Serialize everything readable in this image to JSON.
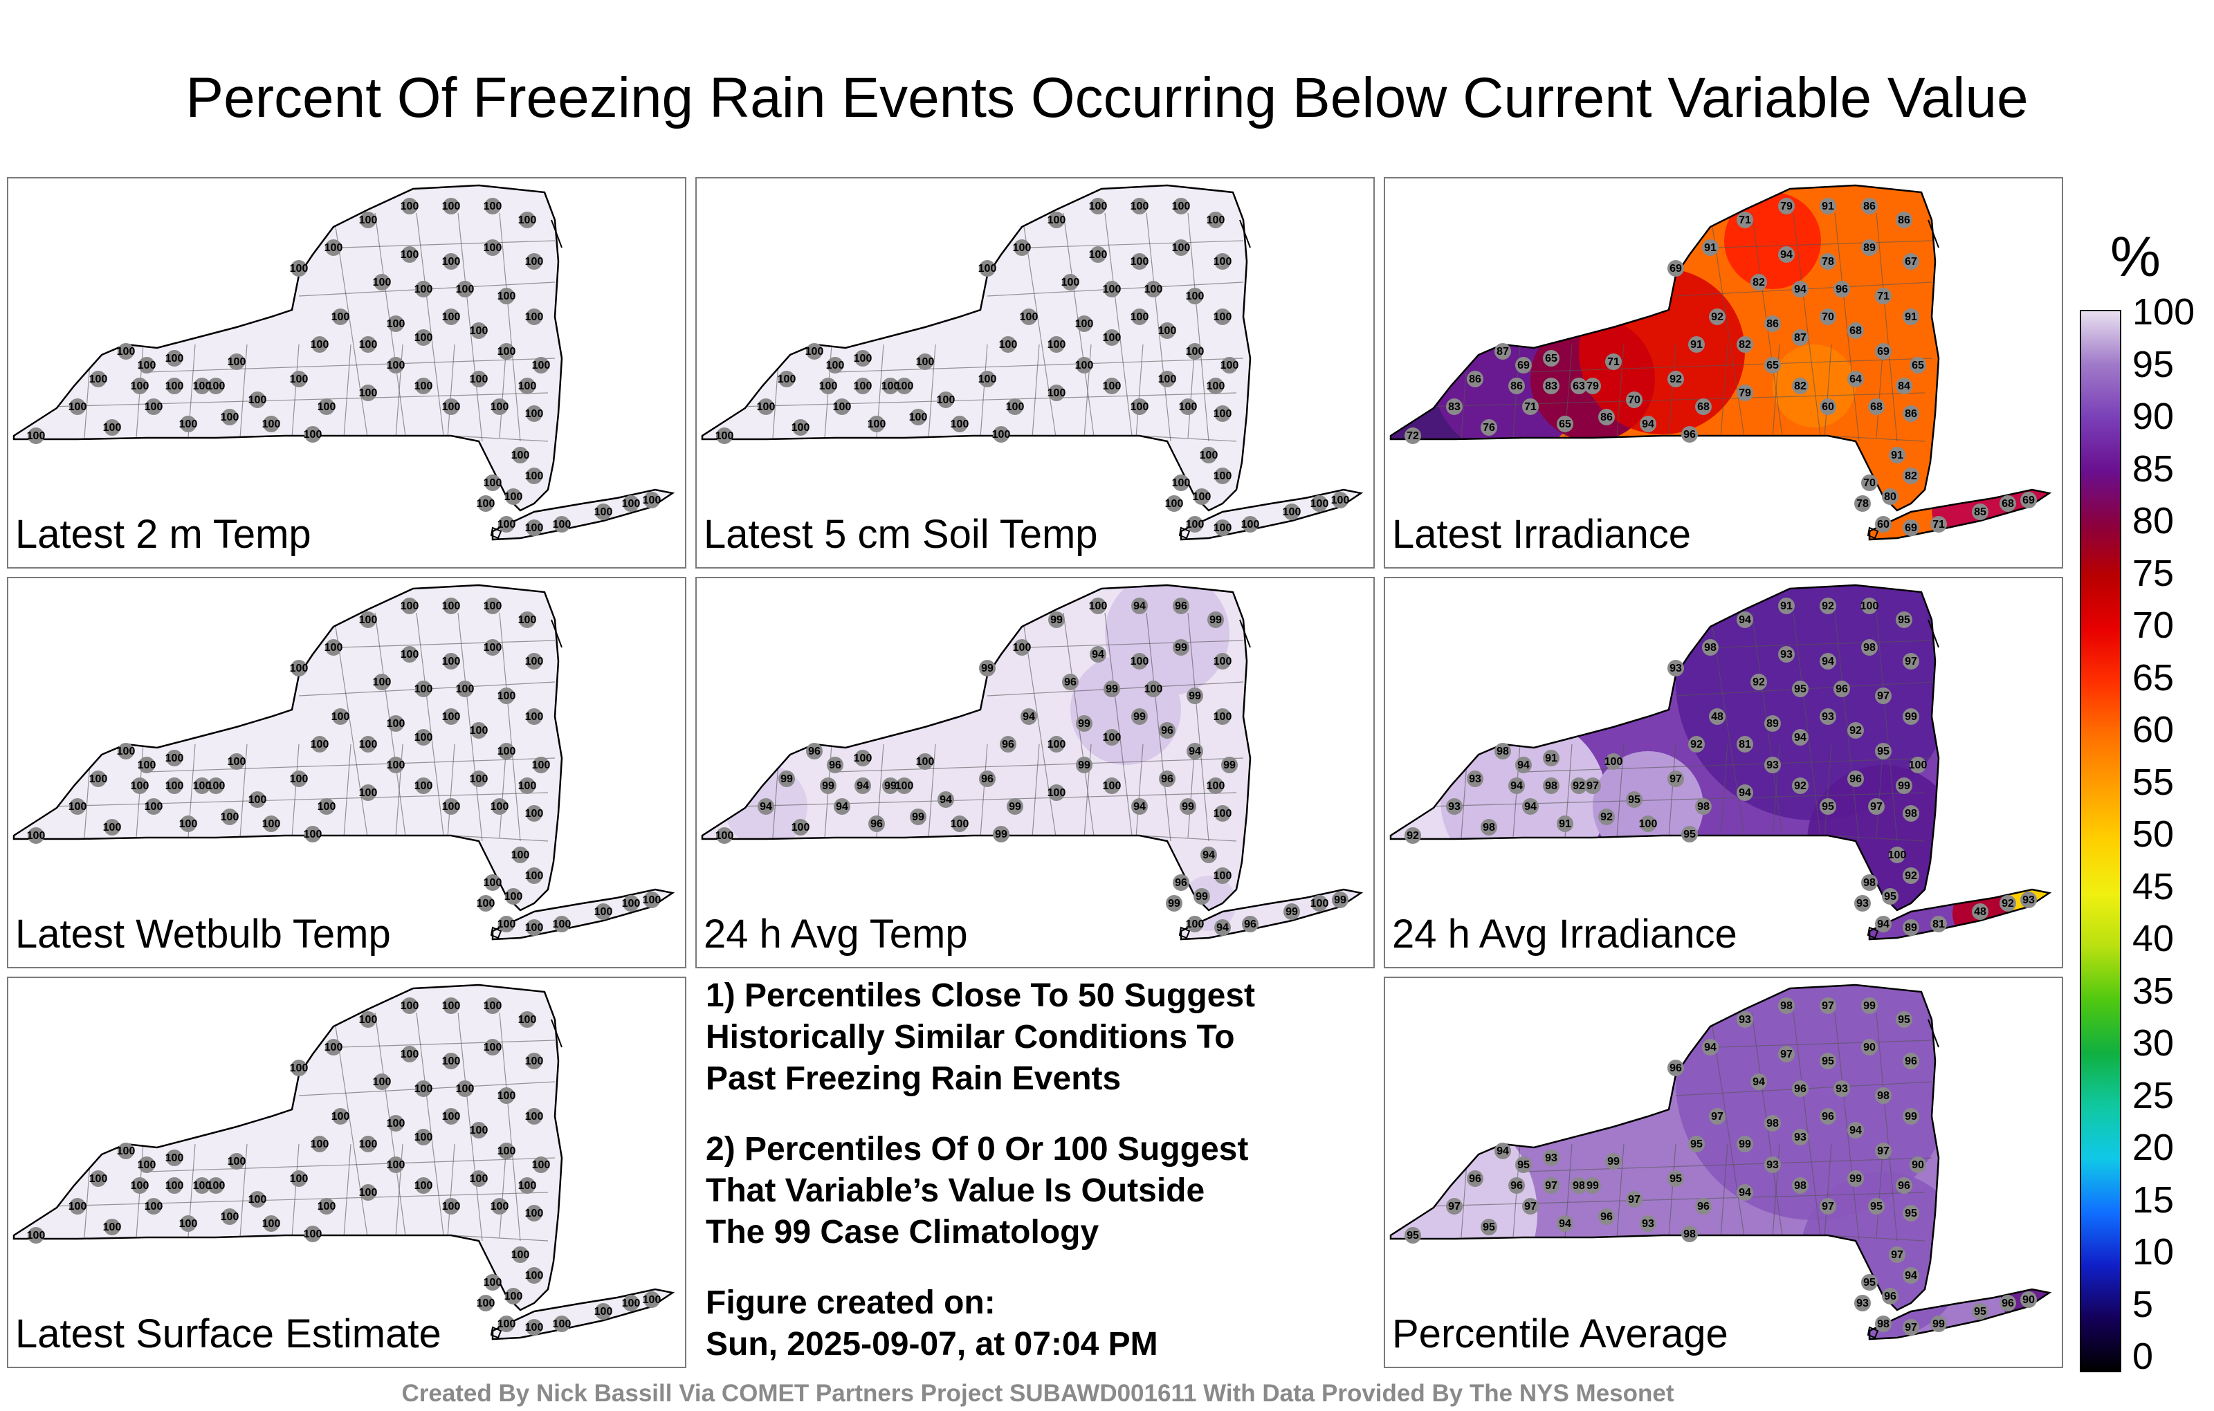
{
  "title": "Percent Of Freezing Rain Events Occurring Below Current Variable Value",
  "panels": [
    {
      "label": "Latest 2 m Temp",
      "fill": "#f1edf6",
      "mode": "white",
      "values": [
        100
      ]
    },
    {
      "label": "Latest 5 cm Soil Temp",
      "fill": "#f1edf6",
      "mode": "white",
      "values": [
        100
      ]
    },
    {
      "label": "Latest Irradiance",
      "fill": "#ff6a00",
      "mode": "irradiance",
      "values": [
        72,
        83,
        87,
        86,
        65,
        63,
        71,
        70,
        92,
        68,
        79,
        65,
        82,
        60,
        64,
        68,
        84,
        65,
        86,
        69,
        68,
        70,
        87,
        86,
        82,
        92,
        91,
        69,
        91,
        71,
        79,
        91,
        86,
        86,
        67,
        89,
        78,
        94,
        82,
        94,
        96,
        71,
        91,
        91,
        70,
        80,
        82,
        78,
        60,
        69,
        71,
        85,
        68,
        69,
        76,
        71,
        65,
        86,
        94,
        96,
        79,
        83,
        69,
        86
      ]
    },
    {
      "label": "Latest Wetbulb Temp",
      "fill": "#f1edf6",
      "mode": "white",
      "values": [
        100
      ]
    },
    {
      "label": "24 h Avg Temp",
      "fill": "#ece4f3",
      "mode": "avgtemp",
      "values": [
        100,
        94,
        96,
        99,
        100,
        99
      ]
    },
    {
      "label": "24 h Avg Irradiance",
      "fill": "#7b3fb0",
      "mode": "avgirr",
      "values": [
        92,
        93,
        98,
        94,
        91,
        92,
        100,
        95,
        97,
        98,
        94,
        93,
        92,
        95,
        96,
        97,
        99,
        100,
        98,
        95,
        92,
        93,
        94,
        89,
        81,
        48
      ]
    },
    {
      "label": "",
      "fill": "#f1edf6",
      "mode": "white",
      "values": [
        100
      ]
    },
    {
      "label": "Percentile Average",
      "fill": "#a27ac9",
      "mode": "average",
      "values": [
        95,
        97,
        94,
        96,
        93,
        98,
        99,
        97,
        95,
        96,
        94,
        93,
        98,
        97,
        99,
        95,
        96,
        90
      ]
    }
  ],
  "panel7_label": "Latest Surface Estimate",
  "notes": [
    "1) Percentiles Close To 50 Suggest\nHistorically Similar Conditions To\nPast Freezing Rain Events",
    "2) Percentiles Of 0 Or 100 Suggest\nThat Variable’s Value Is Outside\nThe 99 Case Climatology",
    "Figure created on:\nSun, 2025-09-07, at 07:04 PM"
  ],
  "credit": "Created By Nick Bassill Via COMET Partners Project SUBAWD001611 With Data Provided By The NYS Mesonet",
  "colorbar": {
    "unit": "%",
    "ticks": [
      "100",
      "95",
      "90",
      "85",
      "80",
      "75",
      "70",
      "65",
      "60",
      "55",
      "50",
      "45",
      "40",
      "35",
      "30",
      "25",
      "20",
      "15",
      "10",
      "5",
      "0"
    ],
    "colors": [
      "#000000",
      "#14005a",
      "#1020c8",
      "#1070ff",
      "#10c8e8",
      "#10c8a0",
      "#10b040",
      "#50c810",
      "#b8e010",
      "#f0f010",
      "#ffd000",
      "#ffa000",
      "#ff7000",
      "#ff3000",
      "#e80000",
      "#b80000",
      "#8a0040",
      "#6a1090",
      "#7a40b8",
      "#a07ac8",
      "#e8e0f0"
    ]
  }
}
